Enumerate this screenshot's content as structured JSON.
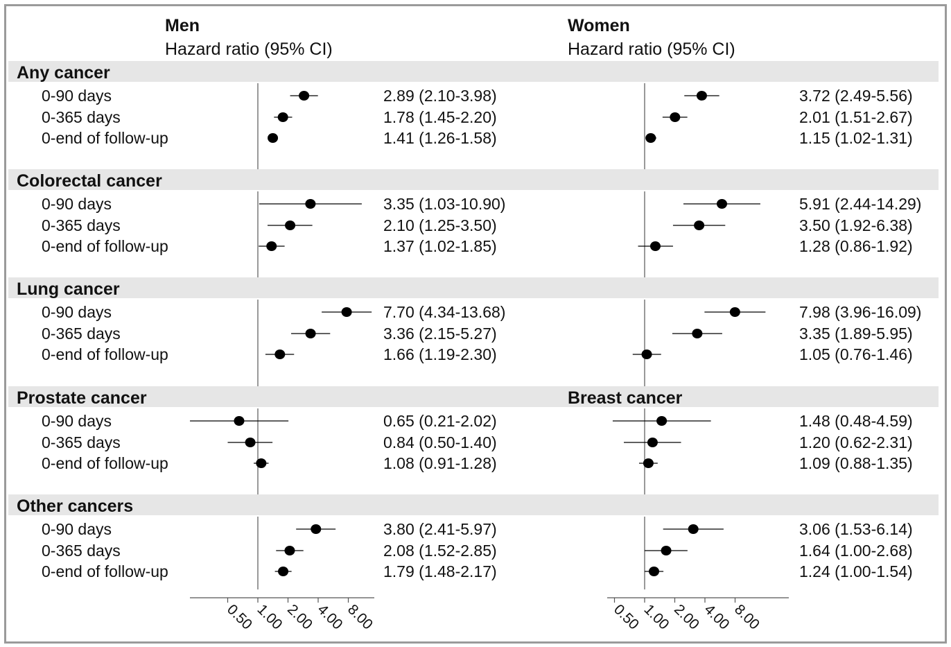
{
  "chart_data": {
    "type": "forest",
    "scale": "log2",
    "xlim": [
      0.5,
      10.0
    ],
    "reference_line": 1.0,
    "ticks": [
      "0.50",
      "1.00",
      "2.00",
      "4.00",
      "8.00"
    ],
    "tick_values": [
      0.5,
      1,
      2,
      4,
      8
    ],
    "panels": [
      {
        "title": "Men",
        "subtitle": "Hazard ratio (95% CI)"
      },
      {
        "title": "Women",
        "subtitle": "Hazard ratio (95% CI)"
      }
    ],
    "sections": [
      {
        "men_label": "Any cancer",
        "women_label": "",
        "rows": [
          {
            "label": "0-90 days",
            "men": {
              "hr": 2.89,
              "lo": 2.1,
              "hi": 3.98,
              "text": "2.89 (2.10-3.98)"
            },
            "women": {
              "hr": 3.72,
              "lo": 2.49,
              "hi": 5.56,
              "text": "3.72 (2.49-5.56)"
            }
          },
          {
            "label": "0-365 days",
            "men": {
              "hr": 1.78,
              "lo": 1.45,
              "hi": 2.2,
              "text": "1.78 (1.45-2.20)"
            },
            "women": {
              "hr": 2.01,
              "lo": 1.51,
              "hi": 2.67,
              "text": "2.01 (1.51-2.67)"
            }
          },
          {
            "label": "0-end of follow-up",
            "men": {
              "hr": 1.41,
              "lo": 1.26,
              "hi": 1.58,
              "text": "1.41 (1.26-1.58)"
            },
            "women": {
              "hr": 1.15,
              "lo": 1.02,
              "hi": 1.31,
              "text": "1.15 (1.02-1.31)"
            }
          }
        ]
      },
      {
        "men_label": "Colorectal cancer",
        "women_label": "",
        "rows": [
          {
            "label": "0-90 days",
            "men": {
              "hr": 3.35,
              "lo": 1.03,
              "hi": 10.9,
              "text": "3.35 (1.03-10.90)"
            },
            "women": {
              "hr": 5.91,
              "lo": 2.44,
              "hi": 14.29,
              "text": "5.91 (2.44-14.29)"
            }
          },
          {
            "label": "0-365 days",
            "men": {
              "hr": 2.1,
              "lo": 1.25,
              "hi": 3.5,
              "text": "2.10 (1.25-3.50)"
            },
            "women": {
              "hr": 3.5,
              "lo": 1.92,
              "hi": 6.38,
              "text": "3.50 (1.92-6.38)"
            }
          },
          {
            "label": "0-end of follow-up",
            "men": {
              "hr": 1.37,
              "lo": 1.02,
              "hi": 1.85,
              "text": "1.37 (1.02-1.85)"
            },
            "women": {
              "hr": 1.28,
              "lo": 0.86,
              "hi": 1.92,
              "text": "1.28 (0.86-1.92)"
            }
          }
        ]
      },
      {
        "men_label": "Lung cancer",
        "women_label": "",
        "rows": [
          {
            "label": "0-90 days",
            "men": {
              "hr": 7.7,
              "lo": 4.34,
              "hi": 13.68,
              "text": "7.70 (4.34-13.68)"
            },
            "women": {
              "hr": 7.98,
              "lo": 3.96,
              "hi": 16.09,
              "text": "7.98 (3.96-16.09)"
            }
          },
          {
            "label": "0-365 days",
            "men": {
              "hr": 3.36,
              "lo": 2.15,
              "hi": 5.27,
              "text": "3.36 (2.15-5.27)"
            },
            "women": {
              "hr": 3.35,
              "lo": 1.89,
              "hi": 5.95,
              "text": "3.35 (1.89-5.95)"
            }
          },
          {
            "label": "0-end of follow-up",
            "men": {
              "hr": 1.66,
              "lo": 1.19,
              "hi": 2.3,
              "text": "1.66 (1.19-2.30)"
            },
            "women": {
              "hr": 1.05,
              "lo": 0.76,
              "hi": 1.46,
              "text": "1.05 (0.76-1.46)"
            }
          }
        ]
      },
      {
        "men_label": "Prostate cancer",
        "women_label": "Breast cancer",
        "rows": [
          {
            "label": "0-90 days",
            "men": {
              "hr": 0.65,
              "lo": 0.21,
              "hi": 2.02,
              "text": "0.65 (0.21-2.02)"
            },
            "women": {
              "hr": 1.48,
              "lo": 0.48,
              "hi": 4.59,
              "text": "1.48 (0.48-4.59)"
            }
          },
          {
            "label": "0-365 days",
            "men": {
              "hr": 0.84,
              "lo": 0.5,
              "hi": 1.4,
              "text": "0.84 (0.50-1.40)"
            },
            "women": {
              "hr": 1.2,
              "lo": 0.62,
              "hi": 2.31,
              "text": "1.20 (0.62-2.31)"
            }
          },
          {
            "label": "0-end of follow-up",
            "men": {
              "hr": 1.08,
              "lo": 0.91,
              "hi": 1.28,
              "text": "1.08 (0.91-1.28)"
            },
            "women": {
              "hr": 1.09,
              "lo": 0.88,
              "hi": 1.35,
              "text": "1.09 (0.88-1.35)"
            }
          }
        ]
      },
      {
        "men_label": "Other cancers",
        "women_label": "",
        "rows": [
          {
            "label": "0-90 days",
            "men": {
              "hr": 3.8,
              "lo": 2.41,
              "hi": 5.97,
              "text": "3.80 (2.41-5.97)"
            },
            "women": {
              "hr": 3.06,
              "lo": 1.53,
              "hi": 6.14,
              "text": "3.06 (1.53-6.14)"
            }
          },
          {
            "label": "0-365 days",
            "men": {
              "hr": 2.08,
              "lo": 1.52,
              "hi": 2.85,
              "text": "2.08 (1.52-2.85)"
            },
            "women": {
              "hr": 1.64,
              "lo": 1.0,
              "hi": 2.68,
              "text": "1.64 (1.00-2.68)"
            }
          },
          {
            "label": "0-end of follow-up",
            "men": {
              "hr": 1.79,
              "lo": 1.48,
              "hi": 2.17,
              "text": "1.79 (1.48-2.17)"
            },
            "women": {
              "hr": 1.24,
              "lo": 1.0,
              "hi": 1.54,
              "text": "1.24 (1.00-1.54)"
            }
          }
        ]
      }
    ],
    "colors": {
      "section_band": "#e6e6e6",
      "marker": "#000000",
      "line": "#000000",
      "axis": "#555555",
      "frame": "#9a9a9a"
    }
  }
}
